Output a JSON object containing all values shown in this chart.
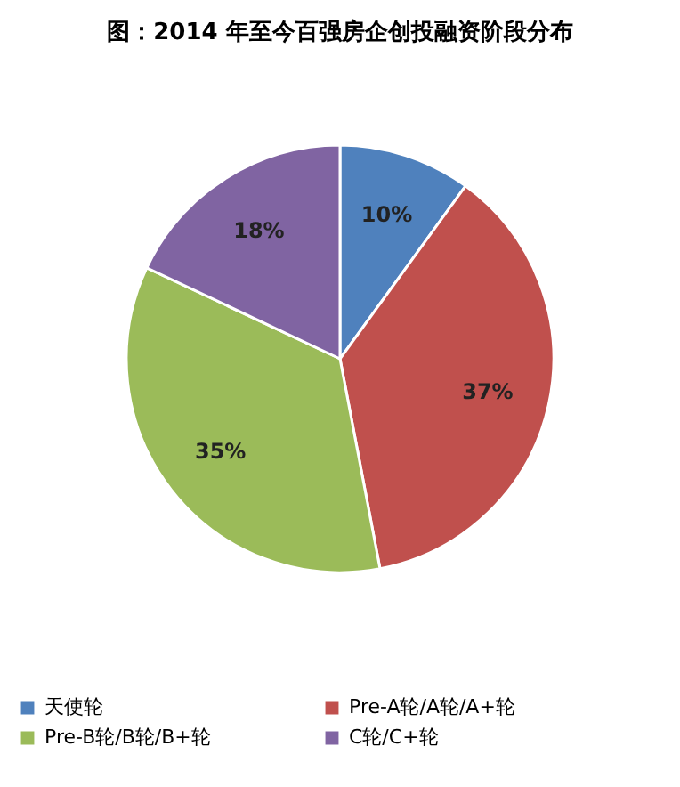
{
  "chart_data": {
    "type": "pie",
    "title": "图：2014 年至今百强房企创投融资阶段分布",
    "categories": [
      "天使轮",
      "Pre-A轮/A轮/A+轮",
      "Pre-B轮/B轮/B+轮",
      "C轮/C+轮"
    ],
    "values": [
      10,
      37,
      35,
      18
    ],
    "value_labels": [
      "10%",
      "37%",
      "35%",
      "18%"
    ],
    "colors": [
      "#4f81bd",
      "#c0504d",
      "#9bbb59",
      "#8064a2"
    ],
    "legend": "bottom"
  }
}
